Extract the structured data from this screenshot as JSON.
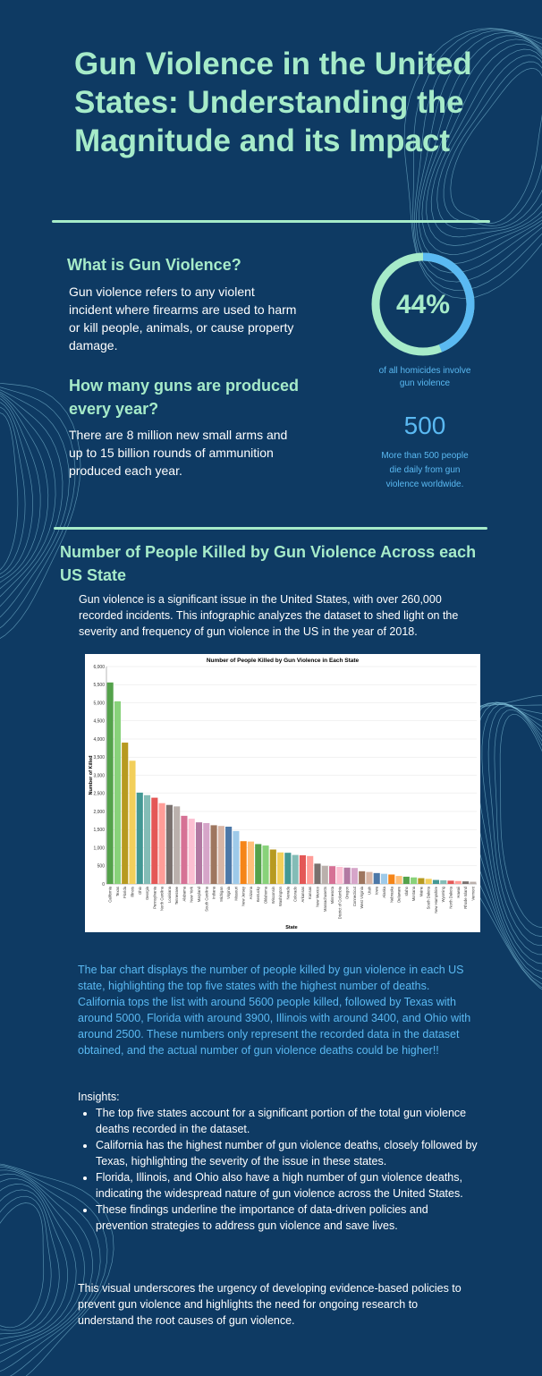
{
  "title": "Gun Violence in the United States: Understanding the Magnitude and its Impact",
  "what": {
    "heading": "What is Gun Violence?",
    "body": "Gun violence refers to any violent incident where firearms are used to harm or kill people, animals, or cause property damage."
  },
  "production": {
    "heading": "How many guns are produced every year?",
    "body": "There are 8 million new small arms and up to 15 billion rounds of ammunition produced each year."
  },
  "stats": {
    "percent_value": "44%",
    "percent_fraction": 0.44,
    "percent_caption": "of all homicides involve gun violence",
    "daily_value": "500",
    "daily_caption": "More than 500 people die daily from gun violence worldwide."
  },
  "chart_section": {
    "heading": "Number of People Killed by Gun Violence Across each US State",
    "intro": "Gun violence is a significant issue in the United States, with over 260,000 recorded incidents. This infographic analyzes the dataset to shed light on the severity and frequency of gun violence in the US in the year of 2018."
  },
  "chart_data": {
    "type": "bar",
    "title": "Number of People Killed by Gun Violence in Each State",
    "xlabel": "State",
    "ylabel": "Number of Killed",
    "ylim": [
      0,
      6000
    ],
    "yticks": [
      0,
      500,
      1000,
      1500,
      2000,
      2500,
      3000,
      3500,
      4000,
      4500,
      5000,
      5500,
      6000
    ],
    "ytick_labels": [
      "0",
      "500",
      "1,000",
      "1,500",
      "2,000",
      "2,500",
      "3,000",
      "3,500",
      "4,000",
      "4,500",
      "5,000",
      "5,500",
      "6,000"
    ],
    "grid": true,
    "categories": [
      "California",
      "Texas",
      "Florida",
      "Illinois",
      "Ohio",
      "Georgia",
      "Pennsylvania",
      "North Carolina",
      "Louisiana",
      "Tennessee",
      "Alabama",
      "New York",
      "Maryland",
      "South Carolina",
      "Indiana",
      "Michigan",
      "Virginia",
      "Missouri",
      "New Jersey",
      "Arizona",
      "Kentucky",
      "Oklahoma",
      "Wisconsin",
      "Washington",
      "Nevada",
      "Colorado",
      "Arkansas",
      "Kansas",
      "New Mexico",
      "Massachusetts",
      "Minnesota",
      "District of Columbia",
      "Oregon",
      "Connecticut",
      "West Virginia",
      "Utah",
      "Iowa",
      "Alaska",
      "Nebraska",
      "Delaware",
      "Idaho",
      "Montana",
      "Maine",
      "South Dakota",
      "New Hampshire",
      "Wyoming",
      "North Dakota",
      "Hawaii",
      "Rhode Island",
      "Vermont"
    ],
    "values": [
      5560,
      5040,
      3900,
      3400,
      2520,
      2450,
      2380,
      2230,
      2180,
      2140,
      1880,
      1800,
      1700,
      1680,
      1620,
      1600,
      1580,
      1460,
      1180,
      1170,
      1100,
      1060,
      950,
      870,
      860,
      800,
      790,
      770,
      560,
      500,
      490,
      470,
      450,
      440,
      350,
      330,
      300,
      280,
      260,
      220,
      200,
      180,
      160,
      140,
      110,
      100,
      90,
      80,
      70,
      60
    ],
    "colors": [
      "#54a24b",
      "#88d27a",
      "#b79a20",
      "#f2cf5b",
      "#439894",
      "#83bcb6",
      "#e45756",
      "#ff9d98",
      "#79706e",
      "#bab0ac",
      "#d67195",
      "#fcbfd2",
      "#b279a2",
      "#d6a5c9",
      "#9e765f",
      "#d8b5a5",
      "#4c78a8",
      "#9ecae9",
      "#f58518",
      "#ffbf79"
    ]
  },
  "description": "The bar chart displays the number of people killed by gun violence in each US state, highlighting the top five states with the highest number of deaths. California tops the list with around 5600 people killed, followed by Texas with around 5000, Florida with around 3900, Illinois with around 3400, and Ohio with around 2500. These numbers only represent the recorded data in the dataset obtained, and the actual number of gun violence deaths could be higher!!",
  "insights": {
    "label": "Insights:",
    "items": [
      "The top five states account for a significant portion of the total gun violence deaths recorded in the dataset.",
      "California has the highest number of gun violence deaths, closely followed by Texas, highlighting the severity of the issue in these states.",
      "Florida, Illinois, and Ohio also have a high number of gun violence deaths, indicating the widespread nature of gun violence across the United States.",
      "These findings underline the importance of data-driven policies and prevention strategies to address gun violence and save lives."
    ]
  },
  "closing": "This visual underscores the urgency of developing evidence-based policies to prevent gun violence and highlights the need for ongoing research to understand the root causes of gun violence.",
  "colors": {
    "background": "#0e3a63",
    "accent_mint": "#a6ebc9",
    "accent_blue": "#5ab9f2"
  }
}
